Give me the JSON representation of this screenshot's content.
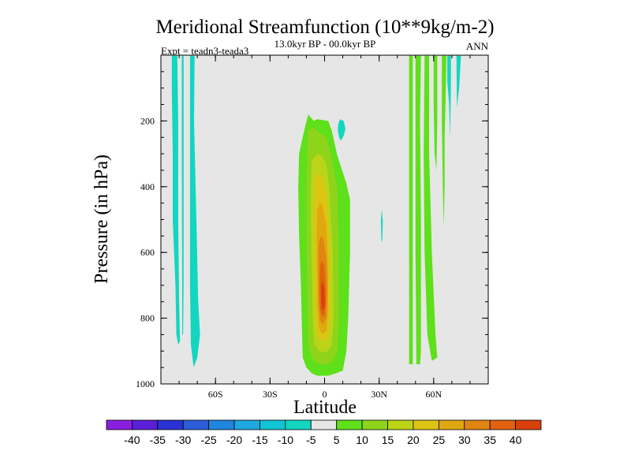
{
  "chart_data": {
    "type": "contour",
    "title": "Meridional Streamfunction (10**9kg/m-2)",
    "subtitle_center": "13.0kyr BP - 00.0kyr BP",
    "subtitle_left": "Expt = teadn3-teada3",
    "subtitle_right": "ANN",
    "xlabel": "Latitude",
    "ylabel": "Pressure (in hPa)",
    "xlim": [
      -90,
      90
    ],
    "ylim": [
      1000,
      0
    ],
    "x_ticks": [
      {
        "value": -60,
        "label": "60S"
      },
      {
        "value": -30,
        "label": "30S"
      },
      {
        "value": 0,
        "label": "0"
      },
      {
        "value": 30,
        "label": "30N"
      },
      {
        "value": 60,
        "label": "60N"
      }
    ],
    "y_ticks": [
      {
        "value": 200,
        "label": "200"
      },
      {
        "value": 400,
        "label": "400"
      },
      {
        "value": 600,
        "label": "600"
      },
      {
        "value": 800,
        "label": "800"
      },
      {
        "value": 1000,
        "label": "1000"
      }
    ],
    "background_color": "#e6e6e6",
    "colorbar": {
      "labels": [
        "-40",
        "-35",
        "-30",
        "-25",
        "-20",
        "-15",
        "-10",
        "-5",
        "5",
        "10",
        "15",
        "20",
        "25",
        "30",
        "35",
        "40"
      ],
      "colors": [
        "#8a1fe0",
        "#5a1fd8",
        "#2a32d6",
        "#2c5ed8",
        "#1f86dd",
        "#1ea8df",
        "#12c3d6",
        "#12d6c0",
        "#e6e6e6",
        "#5ee01a",
        "#8ed41a",
        "#bcd418",
        "#dcc412",
        "#e0a810",
        "#e08510",
        "#e0620e",
        "#d8400c"
      ]
    },
    "regions": [
      {
        "name": "sh-negative-cell-a",
        "value": -10,
        "color": "#12d6c0",
        "points": [
          [
            -84,
            2
          ],
          [
            -81,
            2
          ],
          [
            -80.5,
            200
          ],
          [
            -80.5,
            500
          ],
          [
            -80,
            750
          ],
          [
            -79.5,
            870
          ],
          [
            -80.5,
            880
          ],
          [
            -81.5,
            850
          ],
          [
            -82,
            700
          ],
          [
            -83.5,
            500
          ],
          [
            -83.5,
            300
          ],
          [
            -84,
            100
          ]
        ]
      },
      {
        "name": "sh-negative-cell-b",
        "value": -10,
        "color": "#12d6c0",
        "points": [
          [
            -78.5,
            2
          ],
          [
            -77.5,
            2
          ],
          [
            -77.5,
            300
          ],
          [
            -77.5,
            700
          ],
          [
            -77.8,
            850
          ],
          [
            -78.3,
            850
          ],
          [
            -78.3,
            700
          ],
          [
            -78.5,
            300
          ]
        ]
      },
      {
        "name": "sh-negative-cell-c",
        "value": -10,
        "color": "#12d6c0",
        "points": [
          [
            -74,
            2
          ],
          [
            -71.5,
            2
          ],
          [
            -71.8,
            200
          ],
          [
            -70.5,
            500
          ],
          [
            -69.5,
            750
          ],
          [
            -68.5,
            850
          ],
          [
            -70,
            920
          ],
          [
            -72,
            950
          ],
          [
            -73.5,
            880
          ],
          [
            -74,
            700
          ],
          [
            -74,
            400
          ]
        ]
      },
      {
        "name": "tropical-cell-level-5",
        "value": 5,
        "color": "#5ee01a",
        "points": [
          [
            -11,
            225
          ],
          [
            -9,
            180
          ],
          [
            -6,
            200
          ],
          [
            -4,
            195
          ],
          [
            2,
            200
          ],
          [
            4,
            230
          ],
          [
            7,
            305
          ],
          [
            12,
            390
          ],
          [
            14,
            440
          ],
          [
            14,
            600
          ],
          [
            13,
            800
          ],
          [
            12,
            900
          ],
          [
            10,
            960
          ],
          [
            6,
            968
          ],
          [
            2,
            975
          ],
          [
            -4,
            975
          ],
          [
            -7,
            968
          ],
          [
            -10,
            950
          ],
          [
            -12,
            920
          ],
          [
            -12.5,
            820
          ],
          [
            -13,
            700
          ],
          [
            -14,
            550
          ],
          [
            -14.5,
            400
          ],
          [
            -14,
            300
          ]
        ]
      },
      {
        "name": "tropical-cell-level-10",
        "value": 10,
        "color": "#8ed41a",
        "points": [
          [
            -9,
            230
          ],
          [
            -7,
            220
          ],
          [
            -5,
            225
          ],
          [
            -2,
            240
          ],
          [
            1,
            250
          ],
          [
            3,
            290
          ],
          [
            7,
            400
          ],
          [
            8,
            600
          ],
          [
            8,
            800
          ],
          [
            7,
            900
          ],
          [
            4,
            935
          ],
          [
            0,
            942
          ],
          [
            -4,
            938
          ],
          [
            -7,
            920
          ],
          [
            -9,
            880
          ],
          [
            -9.5,
            700
          ],
          [
            -10,
            550
          ],
          [
            -10,
            400
          ],
          [
            -9.5,
            300
          ]
        ]
      },
      {
        "name": "tropical-cell-level-15",
        "value": 15,
        "color": "#bcd418",
        "points": [
          [
            -7,
            320
          ],
          [
            -4,
            300
          ],
          [
            -2,
            305
          ],
          [
            1,
            330
          ],
          [
            2.5,
            400
          ],
          [
            4.5,
            600
          ],
          [
            5,
            800
          ],
          [
            4,
            880
          ],
          [
            1,
            905
          ],
          [
            -3,
            900
          ],
          [
            -5.5,
            880
          ],
          [
            -6.5,
            800
          ],
          [
            -7,
            650
          ],
          [
            -7.5,
            500
          ],
          [
            -7.5,
            400
          ]
        ]
      },
      {
        "name": "tropical-cell-level-20",
        "value": 20,
        "color": "#dcc412",
        "points": [
          [
            -5.5,
            380
          ],
          [
            -3.5,
            360
          ],
          [
            -1.5,
            370
          ],
          [
            1,
            420
          ],
          [
            2.5,
            550
          ],
          [
            3,
            700
          ],
          [
            3,
            800
          ],
          [
            1.5,
            860
          ],
          [
            -2,
            870
          ],
          [
            -4,
            850
          ],
          [
            -5,
            780
          ],
          [
            -5.5,
            650
          ],
          [
            -6,
            500
          ]
        ]
      },
      {
        "name": "tropical-cell-level-25",
        "value": 25,
        "color": "#e0a810",
        "points": [
          [
            -4,
            470
          ],
          [
            -2.5,
            450
          ],
          [
            -1,
            460
          ],
          [
            1,
            520
          ],
          [
            2,
            650
          ],
          [
            2,
            780
          ],
          [
            1,
            840
          ],
          [
            -1.5,
            848
          ],
          [
            -3,
            830
          ],
          [
            -4,
            760
          ],
          [
            -4.2,
            640
          ],
          [
            -4.3,
            540
          ]
        ]
      },
      {
        "name": "tropical-cell-level-30",
        "value": 30,
        "color": "#e08510",
        "points": [
          [
            -3.2,
            570
          ],
          [
            -2,
            550
          ],
          [
            -0.5,
            560
          ],
          [
            1,
            620
          ],
          [
            1.5,
            720
          ],
          [
            1,
            800
          ],
          [
            -1,
            818
          ],
          [
            -2.5,
            805
          ],
          [
            -3.2,
            750
          ],
          [
            -3.4,
            660
          ]
        ]
      },
      {
        "name": "tropical-cell-level-35",
        "value": 35,
        "color": "#e0620e",
        "points": [
          [
            -2.5,
            640
          ],
          [
            -1.5,
            625
          ],
          [
            -0.3,
            640
          ],
          [
            0.5,
            700
          ],
          [
            0.7,
            760
          ],
          [
            0,
            790
          ],
          [
            -1.5,
            795
          ],
          [
            -2.5,
            770
          ],
          [
            -2.7,
            700
          ]
        ]
      },
      {
        "name": "tropical-cell-level-40",
        "value": 40,
        "color": "#d8400c",
        "points": [
          [
            -1.8,
            700
          ],
          [
            -1,
            690
          ],
          [
            -0.2,
            705
          ],
          [
            0.2,
            740
          ],
          [
            -0.2,
            770
          ],
          [
            -1.2,
            775
          ],
          [
            -1.9,
            750
          ]
        ]
      },
      {
        "name": "upper-negative-patch",
        "value": -10,
        "color": "#12d6c0",
        "points": [
          [
            7.5,
            210
          ],
          [
            8.5,
            195
          ],
          [
            10.5,
            200
          ],
          [
            11.5,
            225
          ],
          [
            10.5,
            245
          ],
          [
            9,
            260
          ],
          [
            8,
            250
          ],
          [
            7.3,
            230
          ]
        ]
      },
      {
        "name": "midlevel-negative-sliver",
        "value": -10,
        "color": "#12d6c0",
        "points": [
          [
            31,
            500
          ],
          [
            31.5,
            470
          ],
          [
            32,
            505
          ],
          [
            31.8,
            560
          ],
          [
            31.3,
            570
          ]
        ]
      },
      {
        "name": "nh-positive-cell-a",
        "value": 5,
        "color": "#5ee01a",
        "points": [
          [
            46.5,
            2
          ],
          [
            48.5,
            2
          ],
          [
            48.5,
            300
          ],
          [
            48.5,
            600
          ],
          [
            48.5,
            800
          ],
          [
            48.5,
            940
          ],
          [
            46.5,
            940
          ],
          [
            46.5,
            700
          ],
          [
            46.5,
            400
          ]
        ]
      },
      {
        "name": "nh-positive-cell-b",
        "value": 5,
        "color": "#5ee01a",
        "points": [
          [
            50,
            2
          ],
          [
            53,
            2
          ],
          [
            52.5,
            200
          ],
          [
            53,
            500
          ],
          [
            53,
            900
          ],
          [
            52.5,
            940
          ],
          [
            50.5,
            940
          ],
          [
            50,
            600
          ],
          [
            50,
            300
          ]
        ]
      },
      {
        "name": "nh-positive-cell-c",
        "value": 5,
        "color": "#5ee01a",
        "points": [
          [
            55,
            2
          ],
          [
            57.5,
            2
          ],
          [
            57.5,
            300
          ],
          [
            59,
            600
          ],
          [
            61,
            850
          ],
          [
            62,
            920
          ],
          [
            59,
            930
          ],
          [
            56.5,
            850
          ],
          [
            55,
            600
          ],
          [
            54.5,
            300
          ]
        ]
      },
      {
        "name": "nh-positive-cell-d",
        "value": 5,
        "color": "#5ee01a",
        "points": [
          [
            60,
            2
          ],
          [
            62,
            2
          ],
          [
            62,
            200
          ],
          [
            61.5,
            350
          ],
          [
            60.5,
            300
          ],
          [
            60,
            150
          ]
        ]
      },
      {
        "name": "nh-positive-cell-e",
        "value": 5,
        "color": "#5ee01a",
        "points": [
          [
            64.5,
            2
          ],
          [
            67,
            2
          ],
          [
            66.5,
            150
          ],
          [
            66,
            250
          ],
          [
            66,
            400
          ],
          [
            65.5,
            520
          ],
          [
            65,
            400
          ],
          [
            64.5,
            200
          ]
        ]
      },
      {
        "name": "nh-negative-cell-a",
        "value": -10,
        "color": "#12d6c0",
        "points": [
          [
            67.5,
            2
          ],
          [
            69.5,
            2
          ],
          [
            69.5,
            100
          ],
          [
            69,
            250
          ],
          [
            68.5,
            150
          ],
          [
            67.5,
            80
          ]
        ]
      },
      {
        "name": "nh-negative-cell-b",
        "value": -10,
        "color": "#12d6c0",
        "points": [
          [
            72.5,
            2
          ],
          [
            75,
            2
          ],
          [
            74,
            100
          ],
          [
            72.8,
            160
          ]
        ]
      }
    ]
  }
}
